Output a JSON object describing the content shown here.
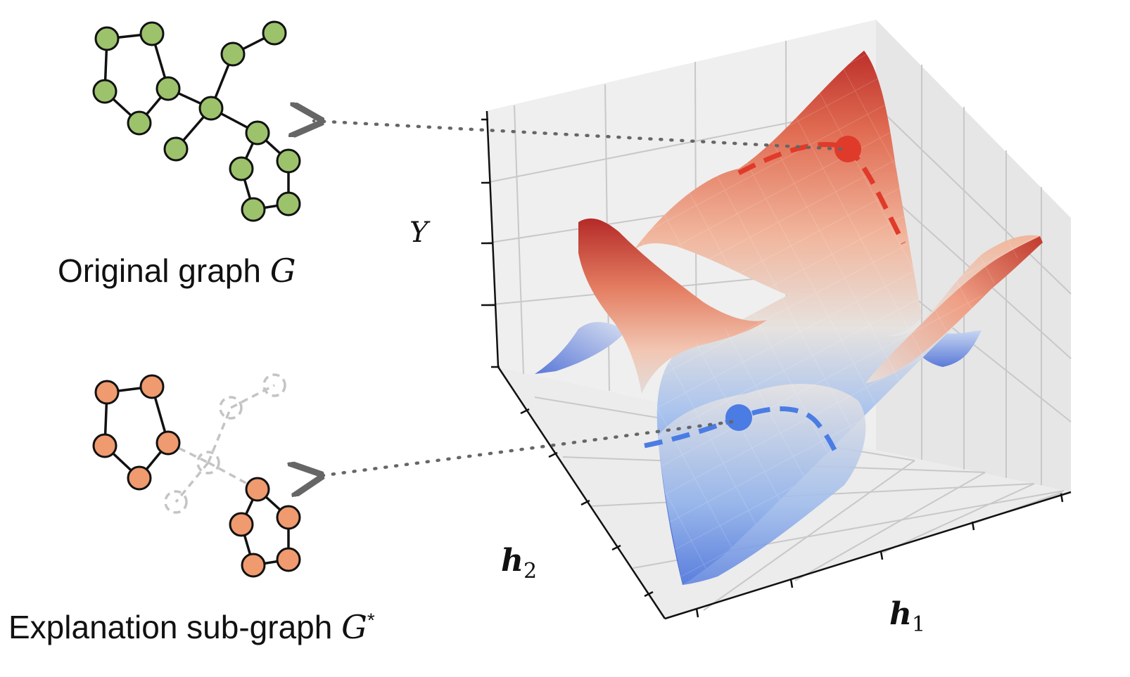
{
  "labels": {
    "original_caption": "Original graph",
    "original_symbol": "G",
    "explanation_caption": "Explanation sub-graph",
    "explanation_symbol": "G",
    "explanation_symbol_sup": "*",
    "axis_y": "Y",
    "axis_h1_base": "h",
    "axis_h1_sub": "1",
    "axis_h2_base": "h",
    "axis_h2_sub": "2"
  },
  "colors": {
    "original_node": "#9dc26c",
    "explanation_node": "#ef9a6f",
    "faded_edge": "#c4c4c4",
    "arrow": "#666666",
    "red_marker": "#e03a2a",
    "blue_marker": "#4a7ce4",
    "surface_high": "#c0372b",
    "surface_mid": "#e8e1de",
    "surface_low": "#3e5fcf"
  }
}
